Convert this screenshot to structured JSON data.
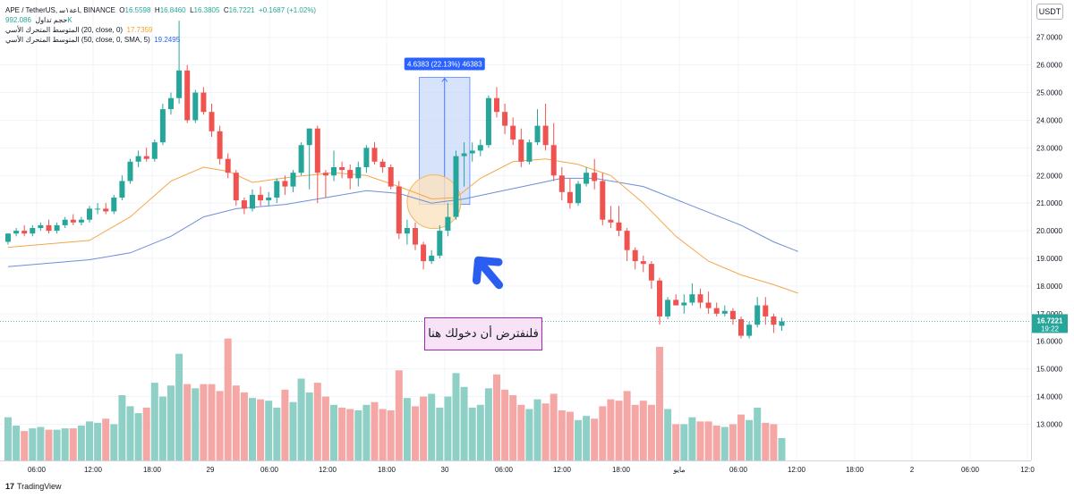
{
  "header": {
    "symbol_line": "APE / TetherUS, ١س‎اعة, BINANCE",
    "ohlc_open_label": "O",
    "ohlc_open": "16.5598",
    "ohlc_high_label": "H",
    "ohlc_high": "16.8460",
    "ohlc_low_label": "L",
    "ohlc_low": "16.3805",
    "ohlc_close_label": "C",
    "ohlc_close": "16.7221",
    "ohlc_change": "+0.1687 (+1.02%)",
    "volume_label": "حجم تداول",
    "volume_value": "992.086K",
    "ema_label": "المتوسط المتحرك الأسي (20, close, 0)",
    "ema_value": "17.7359",
    "sma_label": "المتوسط المتحرك الأسي (50, close, 0, SMA, 5)",
    "sma_value": "19.2495"
  },
  "currency_badge": "USDT",
  "price_badge": {
    "price": "16.7221",
    "countdown": "19:22"
  },
  "measure_label": "4.6383 (22.13%) 46383",
  "callout_text": "فلنفترض أن دخولك هنا",
  "footer": {
    "logo": "17",
    "brand": "TradingView"
  },
  "colors": {
    "up": "#26a69a",
    "down": "#ef5350",
    "vol_up": "#8fd0c6",
    "vol_down": "#f4a7a5",
    "ema": "#f5a64a",
    "sma": "#6e8fd6",
    "measure_fill": "#c9d8fa",
    "measure_stroke": "#2962ff",
    "highlight_fill": "#fbe2bf",
    "highlight_stroke": "#f1b660",
    "arrow": "#2a5ef0"
  },
  "chart_data": {
    "type": "candlestick",
    "y_ticks": [
      "27.0000",
      "26.0000",
      "25.0000",
      "24.0000",
      "23.0000",
      "22.0000",
      "21.0000",
      "20.0000",
      "19.0000",
      "18.0000",
      "17.0000",
      "16.0000",
      "15.0000",
      "14.0000",
      "13.0000"
    ],
    "x_ticks": [
      "06:00",
      "12:00",
      "18:00",
      "29",
      "06:00",
      "12:00",
      "18:00",
      "30",
      "06:00",
      "12:00",
      "18:00",
      "مايو",
      "06:00",
      "12:00",
      "18:00",
      "2",
      "06:00",
      "12:0"
    ],
    "ylim": [
      12.4,
      27.8
    ],
    "candles": [
      {
        "o": 19.6,
        "h": 19.9,
        "l": 19.5,
        "c": 19.9,
        "v": 13.25
      },
      {
        "o": 19.9,
        "h": 20.1,
        "l": 19.8,
        "c": 20.0,
        "v": 12.95
      },
      {
        "o": 20.0,
        "h": 20.2,
        "l": 19.8,
        "c": 19.9,
        "v": 12.75
      },
      {
        "o": 19.9,
        "h": 20.2,
        "l": 19.8,
        "c": 20.1,
        "v": 12.85
      },
      {
        "o": 20.1,
        "h": 20.3,
        "l": 20.0,
        "c": 20.2,
        "v": 12.9
      },
      {
        "o": 20.2,
        "h": 20.4,
        "l": 19.9,
        "c": 20.0,
        "v": 12.8
      },
      {
        "o": 20.0,
        "h": 20.3,
        "l": 19.9,
        "c": 20.2,
        "v": 12.8
      },
      {
        "o": 20.2,
        "h": 20.5,
        "l": 20.1,
        "c": 20.4,
        "v": 12.85
      },
      {
        "o": 20.4,
        "h": 20.6,
        "l": 20.2,
        "c": 20.3,
        "v": 12.85
      },
      {
        "o": 20.3,
        "h": 20.5,
        "l": 20.2,
        "c": 20.4,
        "v": 12.95
      },
      {
        "o": 20.4,
        "h": 20.9,
        "l": 20.3,
        "c": 20.8,
        "v": 13.1
      },
      {
        "o": 20.8,
        "h": 21.0,
        "l": 20.6,
        "c": 20.8,
        "v": 13.05
      },
      {
        "o": 20.8,
        "h": 21.0,
        "l": 20.6,
        "c": 20.7,
        "v": 13.2
      },
      {
        "o": 20.7,
        "h": 21.3,
        "l": 20.6,
        "c": 21.2,
        "v": 13.0
      },
      {
        "o": 21.2,
        "h": 22.0,
        "l": 21.1,
        "c": 21.8,
        "v": 14.05
      },
      {
        "o": 21.8,
        "h": 22.6,
        "l": 21.7,
        "c": 22.5,
        "v": 13.65
      },
      {
        "o": 22.5,
        "h": 22.9,
        "l": 22.3,
        "c": 22.7,
        "v": 13.4
      },
      {
        "o": 22.7,
        "h": 23.0,
        "l": 22.5,
        "c": 22.6,
        "v": 13.6
      },
      {
        "o": 22.6,
        "h": 23.3,
        "l": 22.5,
        "c": 23.2,
        "v": 14.5
      },
      {
        "o": 23.2,
        "h": 24.6,
        "l": 23.1,
        "c": 24.4,
        "v": 14.0
      },
      {
        "o": 24.4,
        "h": 25.0,
        "l": 24.2,
        "c": 24.8,
        "v": 14.4
      },
      {
        "o": 24.8,
        "h": 27.6,
        "l": 24.6,
        "c": 25.8,
        "v": 15.55
      },
      {
        "o": 25.8,
        "h": 26.0,
        "l": 23.9,
        "c": 24.0,
        "v": 14.45
      },
      {
        "o": 24.0,
        "h": 25.1,
        "l": 23.9,
        "c": 25.0,
        "v": 14.3
      },
      {
        "o": 25.0,
        "h": 25.2,
        "l": 24.2,
        "c": 24.3,
        "v": 14.45
      },
      {
        "o": 24.3,
        "h": 24.6,
        "l": 23.4,
        "c": 23.6,
        "v": 14.45
      },
      {
        "o": 23.6,
        "h": 23.8,
        "l": 22.4,
        "c": 22.6,
        "v": 14.2
      },
      {
        "o": 22.6,
        "h": 22.8,
        "l": 21.9,
        "c": 22.1,
        "v": 16.1
      },
      {
        "o": 22.1,
        "h": 22.2,
        "l": 20.9,
        "c": 21.1,
        "v": 14.4
      },
      {
        "o": 21.1,
        "h": 21.2,
        "l": 20.6,
        "c": 20.8,
        "v": 14.15
      },
      {
        "o": 20.8,
        "h": 21.5,
        "l": 20.7,
        "c": 21.3,
        "v": 13.95
      },
      {
        "o": 21.3,
        "h": 21.6,
        "l": 20.9,
        "c": 21.1,
        "v": 13.9
      },
      {
        "o": 21.1,
        "h": 21.4,
        "l": 20.9,
        "c": 21.2,
        "v": 13.85
      },
      {
        "o": 21.2,
        "h": 21.9,
        "l": 21.0,
        "c": 21.8,
        "v": 13.6
      },
      {
        "o": 21.8,
        "h": 22.0,
        "l": 21.3,
        "c": 21.6,
        "v": 14.25
      },
      {
        "o": 21.6,
        "h": 22.2,
        "l": 21.4,
        "c": 22.1,
        "v": 13.8
      },
      {
        "o": 22.1,
        "h": 23.2,
        "l": 22.0,
        "c": 23.1,
        "v": 14.65
      },
      {
        "o": 23.1,
        "h": 23.7,
        "l": 21.5,
        "c": 23.7,
        "v": 14.15
      },
      {
        "o": 23.7,
        "h": 23.8,
        "l": 21.0,
        "c": 22.1,
        "v": 14.5
      },
      {
        "o": 22.1,
        "h": 22.2,
        "l": 21.2,
        "c": 22.0,
        "v": 14.0
      },
      {
        "o": 22.0,
        "h": 22.9,
        "l": 21.8,
        "c": 22.3,
        "v": 13.7
      },
      {
        "o": 22.3,
        "h": 22.5,
        "l": 21.9,
        "c": 22.2,
        "v": 13.6
      },
      {
        "o": 22.2,
        "h": 22.4,
        "l": 21.5,
        "c": 21.9,
        "v": 13.55
      },
      {
        "o": 21.9,
        "h": 22.5,
        "l": 21.6,
        "c": 22.3,
        "v": 13.5
      },
      {
        "o": 22.3,
        "h": 23.1,
        "l": 22.1,
        "c": 23.0,
        "v": 13.7
      },
      {
        "o": 23.0,
        "h": 23.2,
        "l": 22.4,
        "c": 22.5,
        "v": 13.8
      },
      {
        "o": 22.5,
        "h": 22.6,
        "l": 22.1,
        "c": 22.3,
        "v": 13.55
      },
      {
        "o": 22.3,
        "h": 22.4,
        "l": 21.5,
        "c": 21.6,
        "v": 13.5
      },
      {
        "o": 21.6,
        "h": 21.8,
        "l": 19.7,
        "c": 19.9,
        "v": 14.95
      },
      {
        "o": 19.9,
        "h": 20.4,
        "l": 19.5,
        "c": 20.1,
        "v": 13.95
      },
      {
        "o": 20.1,
        "h": 20.3,
        "l": 19.3,
        "c": 19.5,
        "v": 13.65
      },
      {
        "o": 19.5,
        "h": 19.6,
        "l": 18.6,
        "c": 18.9,
        "v": 14.0
      },
      {
        "o": 18.9,
        "h": 19.3,
        "l": 18.8,
        "c": 19.1,
        "v": 14.1
      },
      {
        "o": 19.1,
        "h": 20.2,
        "l": 19.0,
        "c": 20.0,
        "v": 13.6
      },
      {
        "o": 20.0,
        "h": 21.0,
        "l": 19.8,
        "c": 20.5,
        "v": 14.0
      },
      {
        "o": 20.5,
        "h": 22.9,
        "l": 20.4,
        "c": 22.7,
        "v": 14.85
      },
      {
        "o": 22.7,
        "h": 23.2,
        "l": 21.6,
        "c": 22.8,
        "v": 14.35
      },
      {
        "o": 22.8,
        "h": 23.2,
        "l": 22.5,
        "c": 22.9,
        "v": 13.6
      },
      {
        "o": 22.9,
        "h": 23.3,
        "l": 22.7,
        "c": 23.1,
        "v": 13.7
      },
      {
        "o": 23.1,
        "h": 24.9,
        "l": 23.0,
        "c": 24.8,
        "v": 14.3
      },
      {
        "o": 24.8,
        "h": 25.2,
        "l": 24.1,
        "c": 24.3,
        "v": 14.8
      },
      {
        "o": 24.3,
        "h": 24.6,
        "l": 23.5,
        "c": 23.8,
        "v": 14.25
      },
      {
        "o": 23.8,
        "h": 24.1,
        "l": 23.1,
        "c": 23.3,
        "v": 14.05
      },
      {
        "o": 23.3,
        "h": 23.7,
        "l": 22.3,
        "c": 22.5,
        "v": 13.7
      },
      {
        "o": 22.5,
        "h": 23.3,
        "l": 22.4,
        "c": 23.2,
        "v": 13.55
      },
      {
        "o": 23.2,
        "h": 24.4,
        "l": 23.1,
        "c": 23.8,
        "v": 13.9
      },
      {
        "o": 23.8,
        "h": 24.6,
        "l": 22.9,
        "c": 23.1,
        "v": 13.75
      },
      {
        "o": 23.1,
        "h": 23.9,
        "l": 21.8,
        "c": 22.0,
        "v": 14.1
      },
      {
        "o": 22.0,
        "h": 22.3,
        "l": 21.1,
        "c": 21.4,
        "v": 13.5
      },
      {
        "o": 21.4,
        "h": 21.9,
        "l": 20.8,
        "c": 21.0,
        "v": 13.45
      },
      {
        "o": 21.0,
        "h": 21.8,
        "l": 20.9,
        "c": 21.7,
        "v": 13.15
      },
      {
        "o": 21.7,
        "h": 22.3,
        "l": 21.6,
        "c": 22.1,
        "v": 13.3
      },
      {
        "o": 22.1,
        "h": 22.6,
        "l": 21.5,
        "c": 21.8,
        "v": 13.2
      },
      {
        "o": 21.8,
        "h": 22.1,
        "l": 20.2,
        "c": 20.4,
        "v": 13.65
      },
      {
        "o": 20.4,
        "h": 20.9,
        "l": 20.1,
        "c": 20.3,
        "v": 13.9
      },
      {
        "o": 20.3,
        "h": 20.9,
        "l": 19.8,
        "c": 20.0,
        "v": 13.85
      },
      {
        "o": 20.0,
        "h": 20.1,
        "l": 18.9,
        "c": 19.3,
        "v": 14.2
      },
      {
        "o": 19.3,
        "h": 19.4,
        "l": 18.6,
        "c": 18.9,
        "v": 13.7
      },
      {
        "o": 18.9,
        "h": 19.1,
        "l": 18.5,
        "c": 18.8,
        "v": 13.85
      },
      {
        "o": 18.8,
        "h": 18.9,
        "l": 17.9,
        "c": 18.2,
        "v": 13.7
      },
      {
        "o": 18.2,
        "h": 18.3,
        "l": 16.6,
        "c": 16.9,
        "v": 15.8
      },
      {
        "o": 16.9,
        "h": 17.6,
        "l": 16.8,
        "c": 17.5,
        "v": 13.55
      },
      {
        "o": 17.5,
        "h": 17.7,
        "l": 17.3,
        "c": 17.3,
        "v": 13.0
      },
      {
        "o": 17.3,
        "h": 17.7,
        "l": 17.0,
        "c": 17.4,
        "v": 13.0
      },
      {
        "o": 17.4,
        "h": 18.1,
        "l": 17.3,
        "c": 17.7,
        "v": 13.25
      },
      {
        "o": 17.7,
        "h": 17.9,
        "l": 17.2,
        "c": 17.4,
        "v": 13.1
      },
      {
        "o": 17.4,
        "h": 17.8,
        "l": 17.0,
        "c": 17.2,
        "v": 13.1
      },
      {
        "o": 17.2,
        "h": 17.4,
        "l": 16.9,
        "c": 17.0,
        "v": 12.95
      },
      {
        "o": 17.0,
        "h": 17.3,
        "l": 16.9,
        "c": 17.1,
        "v": 12.9
      },
      {
        "o": 17.1,
        "h": 17.2,
        "l": 16.6,
        "c": 16.8,
        "v": 13.0
      },
      {
        "o": 16.8,
        "h": 16.9,
        "l": 16.1,
        "c": 16.2,
        "v": 13.35
      },
      {
        "o": 16.2,
        "h": 16.7,
        "l": 16.1,
        "c": 16.6,
        "v": 13.15
      },
      {
        "o": 16.6,
        "h": 17.6,
        "l": 16.5,
        "c": 17.3,
        "v": 13.6
      },
      {
        "o": 17.3,
        "h": 17.6,
        "l": 16.6,
        "c": 16.9,
        "v": 13.05
      },
      {
        "o": 16.9,
        "h": 17.0,
        "l": 16.3,
        "c": 16.6,
        "v": 13.0
      },
      {
        "o": 16.56,
        "h": 16.85,
        "l": 16.38,
        "c": 16.72,
        "v": 12.5
      }
    ],
    "ema20": [
      [
        0,
        19.4
      ],
      [
        10,
        19.65
      ],
      [
        15,
        20.5
      ],
      [
        20,
        21.8
      ],
      [
        24,
        22.3
      ],
      [
        27,
        22.15
      ],
      [
        30,
        21.75
      ],
      [
        35,
        21.95
      ],
      [
        40,
        22.1
      ],
      [
        44,
        22.0
      ],
      [
        48,
        21.6
      ],
      [
        52,
        21.15
      ],
      [
        55,
        21.2
      ],
      [
        58,
        21.9
      ],
      [
        62,
        22.5
      ],
      [
        66,
        22.6
      ],
      [
        70,
        22.4
      ],
      [
        74,
        22.0
      ],
      [
        78,
        21.0
      ],
      [
        82,
        19.8
      ],
      [
        86,
        18.9
      ],
      [
        90,
        18.4
      ],
      [
        94,
        18.05
      ],
      [
        97,
        17.74
      ]
    ],
    "sma50": [
      [
        0,
        18.7
      ],
      [
        10,
        18.95
      ],
      [
        15,
        19.2
      ],
      [
        20,
        19.8
      ],
      [
        24,
        20.5
      ],
      [
        28,
        20.8
      ],
      [
        34,
        20.95
      ],
      [
        40,
        21.25
      ],
      [
        44,
        21.45
      ],
      [
        48,
        21.35
      ],
      [
        52,
        21.0
      ],
      [
        56,
        21.15
      ],
      [
        60,
        21.4
      ],
      [
        64,
        21.65
      ],
      [
        68,
        21.9
      ],
      [
        72,
        21.9
      ],
      [
        78,
        21.6
      ],
      [
        84,
        20.9
      ],
      [
        90,
        20.2
      ],
      [
        94,
        19.6
      ],
      [
        97,
        19.25
      ]
    ],
    "current_price": 16.7221,
    "measure": {
      "i0": 50.5,
      "i1": 56.7,
      "p0": 20.95,
      "p1": 25.55
    },
    "highlight": {
      "i": 52.3,
      "p": 21.05
    }
  }
}
